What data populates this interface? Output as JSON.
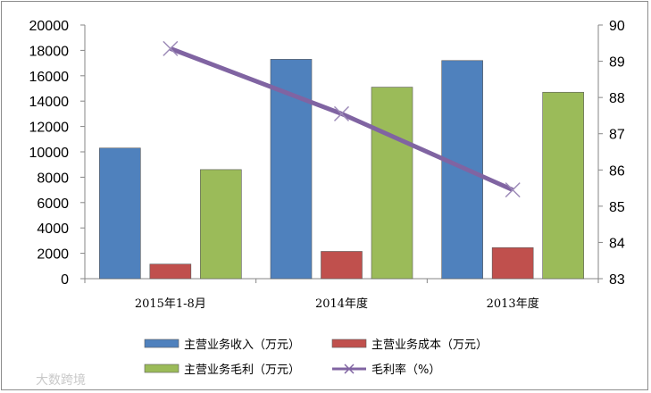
{
  "chart_data": {
    "type": "bar",
    "categories": [
      "2015年1-8月",
      "2014年度",
      "2013年度"
    ],
    "series": [
      {
        "name": "主营业务收入（万元）",
        "type": "bar",
        "axis": "left",
        "color": "#4f81bd",
        "values": [
          10300,
          17300,
          17200
        ]
      },
      {
        "name": "主营业务成本（万元）",
        "type": "bar",
        "axis": "left",
        "color": "#c0504d",
        "values": [
          1150,
          2150,
          2450
        ]
      },
      {
        "name": "主营业务毛利（万元）",
        "type": "bar",
        "axis": "left",
        "color": "#9bbb59",
        "values": [
          8600,
          15100,
          14700
        ]
      },
      {
        "name": "毛利率（%）",
        "type": "line",
        "axis": "right",
        "color": "#8064a2",
        "values": [
          89.35,
          87.55,
          85.45
        ]
      }
    ],
    "ylim": [
      0,
      20000
    ],
    "y_ticks": [
      "0",
      "2000",
      "4000",
      "6000",
      "8000",
      "10000",
      "12000",
      "14000",
      "16000",
      "18000",
      "20000"
    ],
    "y2lim": [
      83,
      90
    ],
    "y2_ticks": [
      "83",
      "84",
      "85",
      "86",
      "87",
      "88",
      "89",
      "90"
    ],
    "grid": false,
    "legend": "bottom",
    "title": "",
    "xlabel": "",
    "ylabel": ""
  },
  "watermark": "大数跨境"
}
